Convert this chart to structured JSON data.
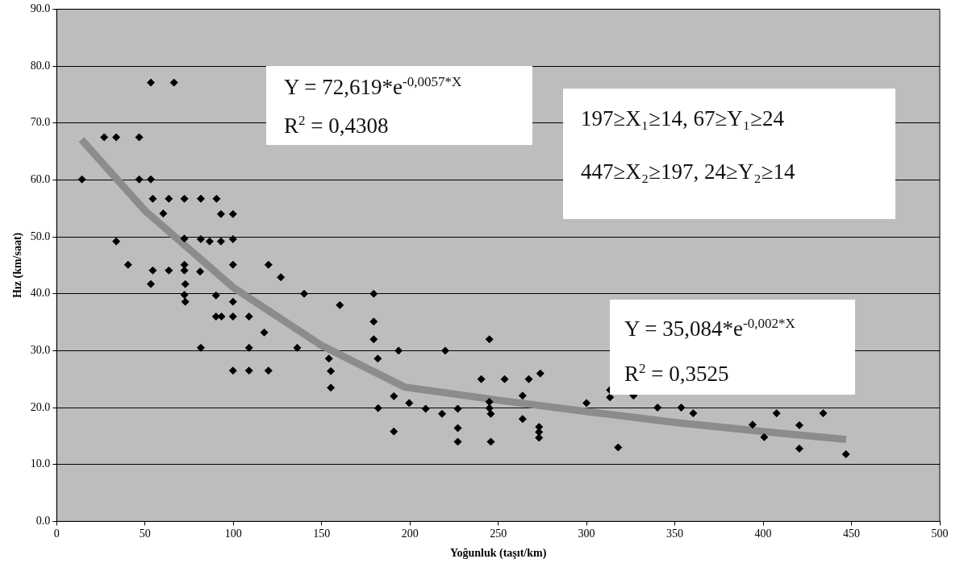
{
  "chart_data": {
    "type": "scatter",
    "xlabel": "Yoğunluk (taşıt/km)",
    "ylabel": "Hız (km/saat)",
    "xlim": [
      0,
      500
    ],
    "xticks": [
      0,
      50,
      100,
      150,
      200,
      250,
      300,
      350,
      400,
      450,
      500
    ],
    "ylim": [
      0,
      90
    ],
    "yticks": [
      {
        "value": 0,
        "label": "0.0"
      },
      {
        "value": 10,
        "label": "10.0"
      },
      {
        "value": 20,
        "label": "20.0"
      },
      {
        "value": 30,
        "label": "30.0"
      },
      {
        "value": 40,
        "label": "40.0"
      },
      {
        "value": 50,
        "label": "50.0"
      },
      {
        "value": 60,
        "label": "60.0"
      },
      {
        "value": 70,
        "label": "70.0"
      },
      {
        "value": 80,
        "label": "80.0"
      },
      {
        "value": 90,
        "label": "90.0"
      }
    ],
    "grid": "y",
    "legend": false,
    "series": [
      {
        "color": "#000000",
        "marker": "diamond",
        "x": [
          14.3,
          26.9,
          33.7,
          46.7,
          53.3,
          66.4,
          46.7,
          53.3,
          54.4,
          63.5,
          72.3,
          81.6,
          90.5,
          60.3,
          93.0,
          99.8,
          33.7,
          72.3,
          81.6,
          86.6,
          93.0,
          99.8,
          40.4,
          72.3,
          99.8,
          54.4,
          63.5,
          72.3,
          81.2,
          53.3,
          72.8,
          72.3,
          90.2,
          72.8,
          99.8,
          90.2,
          93.3,
          99.8,
          108.9,
          81.6,
          108.9,
          119.9,
          126.9,
          140.1,
          179.5,
          160.3,
          117.5,
          179.5,
          179.5,
          136.2,
          154.1,
          181.8,
          193.6,
          220.0,
          245.0,
          155.2,
          155.2,
          240.4,
          253.6,
          267.3,
          273.8,
          190.9,
          199.6,
          182.0,
          208.9,
          218.2,
          227.1,
          245.0,
          245.0,
          245.8,
          263.8,
          263.8,
          273.1,
          273.1,
          273.1,
          227.1,
          190.9,
          227.1,
          245.8,
          300.0,
          313.3,
          313.3,
          317.9,
          326.6,
          340.2,
          353.6,
          360.4,
          394.0,
          400.6,
          407.6,
          420.5,
          420.5,
          434.0,
          446.9,
          99.8,
          108.9,
          119.9
        ],
        "values": [
          60.1,
          67.5,
          67.5,
          67.5,
          77.1,
          77.1,
          60.1,
          60.1,
          56.7,
          56.7,
          56.7,
          56.7,
          56.7,
          54.1,
          54.0,
          54.0,
          49.2,
          49.7,
          49.6,
          49.2,
          49.2,
          49.6,
          45.1,
          45.1,
          45.1,
          44.1,
          44.1,
          44.1,
          43.9,
          41.7,
          41.7,
          39.8,
          39.7,
          38.6,
          38.6,
          36.0,
          36.0,
          36.0,
          36.0,
          30.5,
          30.5,
          45.1,
          42.9,
          40.0,
          40.0,
          38.0,
          33.2,
          35.1,
          32.0,
          30.5,
          28.6,
          28.6,
          30.0,
          30.0,
          32.0,
          26.4,
          23.5,
          25.0,
          25.0,
          25.0,
          26.0,
          22.0,
          20.8,
          19.9,
          19.8,
          18.9,
          19.8,
          19.9,
          21.0,
          18.9,
          22.1,
          18.0,
          16.6,
          15.7,
          14.7,
          16.4,
          15.8,
          14.0,
          14.0,
          20.8,
          23.1,
          21.8,
          13.0,
          22.1,
          20.0,
          20.0,
          19.0,
          17.0,
          14.8,
          19.0,
          16.9,
          12.8,
          19.0,
          11.8,
          26.5,
          26.5,
          26.5
        ]
      },
      {
        "type": "line",
        "color": "#8c8c8c",
        "marker": "none",
        "x": [
          14,
          50,
          100,
          150,
          197,
          250,
          300,
          350,
          400,
          447
        ],
        "values": [
          67.1,
          54.6,
          41.1,
          30.9,
          23.6,
          21.3,
          19.3,
          17.4,
          15.8,
          14.4
        ]
      }
    ],
    "annotations": [
      "Y  = 72,619*e$^{-0,0057*X}$",
      "R$^{2}$ = 0,4308",
      "197≥X₁≥14, 67≥Y₁≥24",
      "447≥X₂≥197, 24≥Y₂≥14",
      "Y  = 35,084*e$^{-0,002*X}$",
      "R$^{2}$ = 0,3525"
    ]
  }
}
